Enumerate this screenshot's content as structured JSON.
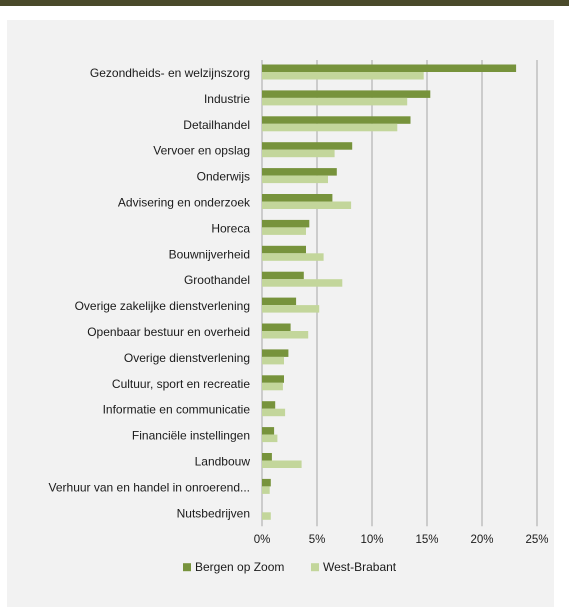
{
  "chart_data": {
    "type": "bar",
    "orientation": "horizontal",
    "categories": [
      "Gezondheids- en welzijnszorg",
      "Industrie",
      "Detailhandel",
      "Vervoer en opslag",
      "Onderwijs",
      "Advisering en onderzoek",
      "Horeca",
      "Bouwnijverheid",
      "Groothandel",
      "Overige zakelijke dienstverlening",
      "Openbaar bestuur en overheid",
      "Overige dienstverlening",
      "Cultuur, sport en recreatie",
      "Informatie en communicatie",
      "Financiële instellingen",
      "Landbouw",
      "Verhuur van en handel in onroerend...",
      "Nutsbedrijven"
    ],
    "series": [
      {
        "name": "Bergen op Zoom",
        "color": "#77933c",
        "values": [
          23.1,
          15.3,
          13.5,
          8.2,
          6.8,
          6.4,
          4.3,
          4.0,
          3.8,
          3.1,
          2.6,
          2.4,
          2.0,
          1.2,
          1.1,
          0.9,
          0.8,
          0.0
        ]
      },
      {
        "name": "West-Brabant",
        "color": "#c3d69b",
        "values": [
          14.7,
          13.2,
          12.3,
          6.6,
          6.0,
          8.1,
          4.0,
          5.6,
          7.3,
          5.2,
          4.2,
          2.0,
          1.9,
          2.1,
          1.4,
          3.6,
          0.7,
          0.8
        ]
      }
    ],
    "xlim": [
      0,
      25
    ],
    "x_ticks": [
      "0%",
      "5%",
      "10%",
      "15%",
      "20%",
      "25%"
    ],
    "grid": "vertical",
    "legend_position": "bottom"
  }
}
